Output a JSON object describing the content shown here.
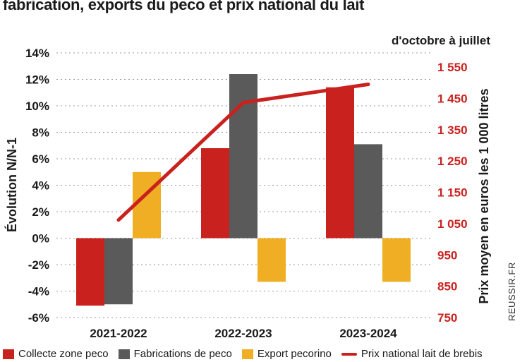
{
  "title": "fabrication, exports du peco et prix national du lait",
  "subtitle": "d'octobre à juillet",
  "source": "REUSSIR.FR",
  "colors": {
    "collecte": "#c9211e",
    "fabrications": "#5a5a5a",
    "export": "#f0ae24",
    "prix": "#c9211e"
  },
  "chart_data": {
    "type": "bar",
    "categories": [
      "2021-2022",
      "2022-2023",
      "2023-2024"
    ],
    "ylabel": "Évolution N/N-1",
    "y2label": "Prix moyen en euros les 1 000 litres",
    "ylim": [
      -6,
      14
    ],
    "y2lim": [
      750,
      1550
    ],
    "yticks": [
      "14%",
      "12%",
      "10%",
      "8%",
      "6%",
      "4%",
      "2%",
      "0%",
      "-2%",
      "-4%",
      "-6%"
    ],
    "y2ticks": [
      "1 550",
      "1 450",
      "1 350",
      "1 250",
      "1 150",
      "1 050",
      "950",
      "850",
      "750"
    ],
    "series": [
      {
        "name": "Collecte zone peco",
        "type": "bar",
        "values": [
          -5.1,
          6.8,
          11.4
        ]
      },
      {
        "name": "Fabrications de peco",
        "type": "bar",
        "values": [
          -5.0,
          12.4,
          7.1
        ]
      },
      {
        "name": "Export pecorino",
        "type": "bar",
        "values": [
          5.0,
          -3.3,
          -3.3
        ]
      },
      {
        "name": "Prix national lait de brebis",
        "type": "line",
        "axis": "right",
        "values": [
          1045,
          1400,
          1455
        ]
      }
    ],
    "legend_position": "bottom"
  }
}
